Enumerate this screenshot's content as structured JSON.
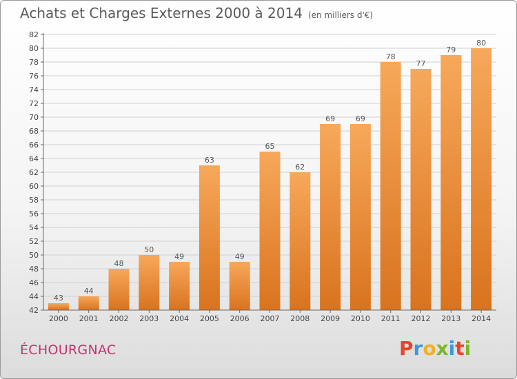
{
  "title": "Achats et Charges Externes 2000 à 2014",
  "unit": "(en milliers d'€)",
  "place": "ÉCHOURGNAC",
  "logo": {
    "letters": [
      "P",
      "r",
      "o",
      "x",
      "i",
      "t",
      "i"
    ],
    "colors": [
      "#e8442b",
      "#3a9ad9",
      "#f2b01e",
      "#7ab829",
      "#3a9ad9",
      "#e8442b",
      "#7ab829"
    ]
  },
  "colors": {
    "bar_top": "#f7a85a",
    "bar_bottom": "#d9731e",
    "accent": "#c2336e"
  },
  "chart_data": {
    "type": "bar",
    "title": "Achats et Charges Externes 2000 à 2014",
    "categories": [
      "2000",
      "2001",
      "2002",
      "2003",
      "2004",
      "2005",
      "2006",
      "2007",
      "2008",
      "2009",
      "2010",
      "2011",
      "2012",
      "2013",
      "2014"
    ],
    "values": [
      43,
      44,
      48,
      50,
      49,
      63,
      49,
      65,
      62,
      69,
      69,
      78,
      77,
      79,
      80
    ],
    "ylim": [
      42,
      82
    ],
    "yticks": [
      42,
      44,
      46,
      48,
      50,
      52,
      54,
      56,
      58,
      60,
      62,
      64,
      66,
      68,
      70,
      72,
      74,
      76,
      78,
      80,
      82
    ],
    "grid": true
  }
}
